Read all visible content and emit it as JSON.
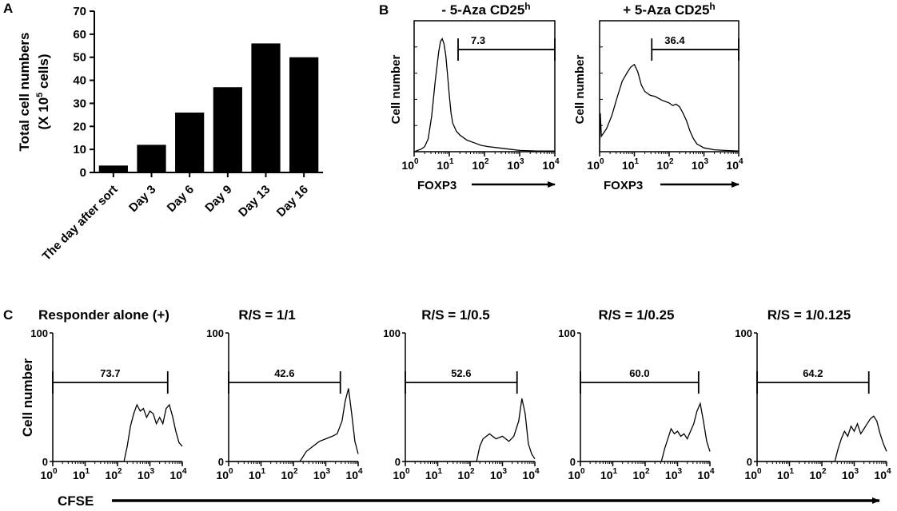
{
  "figure": {
    "panel_letters": [
      "A",
      "B",
      "C"
    ]
  },
  "chart_data": [
    {
      "id": "A",
      "type": "bar",
      "title": "",
      "ylabel_line1": "Total cell numbers",
      "ylabel_line2_prefix": "(X 10",
      "ylabel_line2_exp": "5",
      "ylabel_line2_suffix": " cells)",
      "xlabel": "",
      "categories": [
        "The day after sort",
        "Day 3",
        "Day 6",
        "Day 9",
        "Day 13",
        "Day 16"
      ],
      "values": [
        3,
        12,
        26,
        37,
        56,
        50
      ],
      "ylim": [
        0,
        70
      ],
      "yticks": [
        0,
        10,
        20,
        30,
        40,
        50,
        60,
        70
      ],
      "grid": false
    },
    {
      "id": "B1",
      "type": "line",
      "title_prefix": "- 5-Aza CD25",
      "title_sup": "h",
      "ylabel": "Cell number",
      "xlabel": "FOXP3",
      "xscale": "log",
      "xlim_exp": [
        0,
        4
      ],
      "xtick_exps": [
        "0",
        "1",
        "2",
        "3",
        "4"
      ],
      "gate_label": "7.3",
      "gate_range_log": [
        1.25,
        4.0
      ],
      "x_log": [
        0,
        0.05,
        0.1,
        0.2,
        0.3,
        0.4,
        0.5,
        0.6,
        0.7,
        0.75,
        0.8,
        0.85,
        0.9,
        0.95,
        1.0,
        1.05,
        1.1,
        1.2,
        1.3,
        1.4,
        1.5,
        1.7,
        1.9,
        2.1,
        2.4,
        2.7,
        3.0,
        3.5,
        4.0
      ],
      "y": [
        0.0,
        0.5,
        1,
        2,
        4,
        10,
        28,
        55,
        78,
        86,
        88,
        84,
        75,
        60,
        44,
        30,
        22,
        16,
        13,
        11,
        9,
        7,
        5,
        4,
        3,
        2,
        1,
        0.5,
        0.5
      ],
      "ylim": [
        0,
        100
      ]
    },
    {
      "id": "B2",
      "type": "line",
      "title_prefix": "+ 5-Aza CD25",
      "title_sup": "h",
      "ylabel": "Cell number",
      "xlabel": "FOXP3",
      "xscale": "log",
      "xlim_exp": [
        0,
        4
      ],
      "xtick_exps": [
        "0",
        "1",
        "2",
        "3",
        "4"
      ],
      "gate_label": "36.4",
      "gate_range_log": [
        1.5,
        4.0
      ],
      "x_log": [
        0,
        0.02,
        0.05,
        0.1,
        0.2,
        0.35,
        0.5,
        0.65,
        0.8,
        0.9,
        1.0,
        1.1,
        1.2,
        1.3,
        1.45,
        1.6,
        1.8,
        2.0,
        2.1,
        2.2,
        2.3,
        2.4,
        2.5,
        2.6,
        2.7,
        2.8,
        3.0,
        3.3,
        3.6,
        4.0
      ],
      "y": [
        0,
        30,
        12,
        14,
        18,
        28,
        42,
        55,
        62,
        66,
        68,
        62,
        52,
        47,
        44,
        43,
        40,
        38,
        36,
        37,
        35,
        30,
        24,
        16,
        10,
        6,
        3,
        1.5,
        1,
        0.5
      ],
      "ylim": [
        0,
        100
      ]
    },
    {
      "id": "C1",
      "type": "line",
      "title": "Responder alone (+)",
      "ylabel": "Cell number",
      "xlabel": "CFSE",
      "xscale": "log",
      "xlim_exp": [
        0,
        4
      ],
      "xtick_exps": [
        "0",
        "1",
        "2",
        "3",
        "4"
      ],
      "ytick_labels": [
        "0",
        "100"
      ],
      "ylim": [
        0,
        100
      ],
      "gate_label": "73.7",
      "gate_range_log": [
        0,
        3.55
      ],
      "x_log": [
        0,
        2.2,
        2.3,
        2.4,
        2.5,
        2.6,
        2.7,
        2.8,
        2.9,
        3.0,
        3.1,
        3.2,
        3.3,
        3.4,
        3.5,
        3.6,
        3.7,
        3.8,
        3.9,
        4.0
      ],
      "y": [
        0,
        0,
        12,
        28,
        38,
        45,
        40,
        42,
        35,
        40,
        38,
        30,
        35,
        30,
        42,
        45,
        36,
        24,
        15,
        12
      ]
    },
    {
      "id": "C2",
      "type": "line",
      "title": "R/S = 1/1",
      "ylabel": "",
      "xlabel": "",
      "xscale": "log",
      "xlim_exp": [
        0,
        4
      ],
      "xtick_exps": [
        "0",
        "1",
        "2",
        "3",
        "4"
      ],
      "ytick_labels": [
        "0",
        "100"
      ],
      "ylim": [
        0,
        100
      ],
      "gate_label": "42.6",
      "gate_range_log": [
        0,
        3.45
      ],
      "x_log": [
        0,
        2.2,
        2.4,
        2.6,
        2.8,
        3.0,
        3.2,
        3.35,
        3.5,
        3.6,
        3.7,
        3.8,
        3.9,
        4.0
      ],
      "y": [
        0,
        0,
        8,
        12,
        16,
        18,
        20,
        22,
        32,
        48,
        58,
        38,
        16,
        6
      ]
    },
    {
      "id": "C3",
      "type": "line",
      "title": "R/S = 1/0.5",
      "ylabel": "",
      "xlabel": "",
      "xscale": "log",
      "xlim_exp": [
        0,
        4
      ],
      "xtick_exps": [
        "0",
        "1",
        "2",
        "3",
        "4"
      ],
      "ytick_labels": [
        "0",
        "100"
      ],
      "ylim": [
        0,
        100
      ],
      "gate_label": "52.6",
      "gate_range_log": [
        0,
        3.45
      ],
      "x_log": [
        0,
        2.2,
        2.3,
        2.4,
        2.6,
        2.8,
        3.0,
        3.2,
        3.35,
        3.5,
        3.6,
        3.7,
        3.8,
        3.9,
        4.0
      ],
      "y": [
        0,
        0,
        12,
        18,
        22,
        18,
        20,
        16,
        20,
        32,
        50,
        38,
        14,
        6,
        2
      ]
    },
    {
      "id": "C4",
      "type": "line",
      "title": "R/S = 1/0.25",
      "ylabel": "",
      "xlabel": "",
      "xscale": "log",
      "xlim_exp": [
        0,
        4
      ],
      "xtick_exps": [
        "0",
        "1",
        "2",
        "3",
        "4"
      ],
      "ytick_labels": [
        "0",
        "100"
      ],
      "ylim": [
        0,
        100
      ],
      "gate_label": "60.0",
      "gate_range_log": [
        0,
        3.65
      ],
      "x_log": [
        0,
        2.5,
        2.6,
        2.7,
        2.8,
        2.9,
        3.0,
        3.1,
        3.2,
        3.3,
        3.4,
        3.5,
        3.6,
        3.7,
        3.8,
        3.9,
        4.0
      ],
      "y": [
        0,
        0,
        10,
        18,
        26,
        22,
        24,
        20,
        22,
        18,
        24,
        30,
        40,
        46,
        32,
        16,
        8
      ]
    },
    {
      "id": "C5",
      "type": "line",
      "title": "R/S = 1/0.125",
      "ylabel": "",
      "xlabel": "",
      "xscale": "log",
      "xlim_exp": [
        0,
        4
      ],
      "xtick_exps": [
        "0",
        "1",
        "2",
        "3",
        "4"
      ],
      "ytick_labels": [
        "0",
        "100"
      ],
      "ylim": [
        0,
        100
      ],
      "gate_label": "64.2",
      "gate_range_log": [
        0,
        3.45
      ],
      "x_log": [
        0,
        2.4,
        2.5,
        2.6,
        2.7,
        2.8,
        2.9,
        3.0,
        3.1,
        3.2,
        3.3,
        3.4,
        3.5,
        3.6,
        3.7,
        3.8,
        3.9,
        4.0
      ],
      "y": [
        0,
        0,
        10,
        18,
        24,
        20,
        28,
        24,
        30,
        22,
        26,
        30,
        34,
        36,
        32,
        22,
        14,
        8
      ]
    }
  ]
}
